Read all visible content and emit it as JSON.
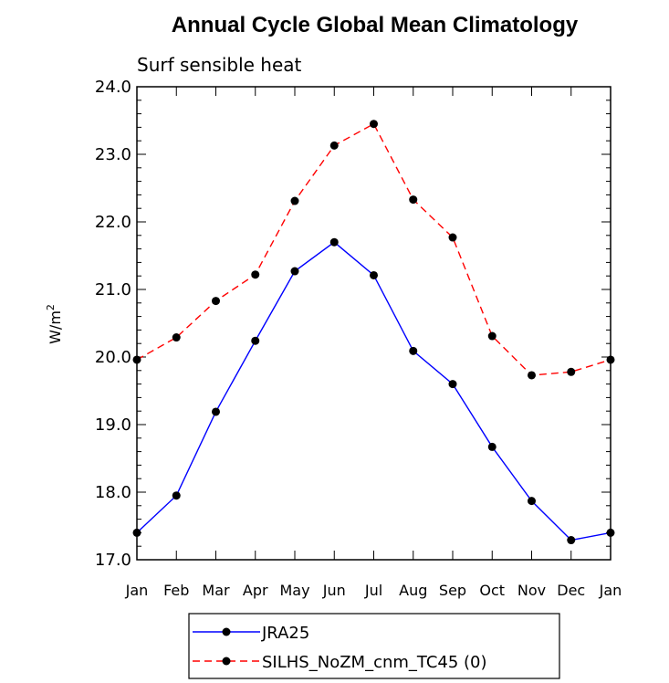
{
  "title": "Annual Cycle Global Mean Climatology",
  "chart_data": {
    "type": "line",
    "subtitle": "Surf sensible heat",
    "ylabel_base": "W/m",
    "ylabel_sup": "2",
    "categories": [
      "Jan",
      "Feb",
      "Mar",
      "Apr",
      "May",
      "Jun",
      "Jul",
      "Aug",
      "Sep",
      "Oct",
      "Nov",
      "Dec",
      "Jan"
    ],
    "ylim": [
      17.0,
      24.0
    ],
    "yticks": [
      "17.0",
      "18.0",
      "19.0",
      "20.0",
      "21.0",
      "22.0",
      "23.0",
      "24.0"
    ],
    "series": [
      {
        "name": "JRA25",
        "color": "#0000ff",
        "dash": "solid",
        "values": [
          17.4,
          17.95,
          19.19,
          20.24,
          21.27,
          21.7,
          21.21,
          20.09,
          19.6,
          18.67,
          17.87,
          17.29,
          17.4
        ]
      },
      {
        "name": "SILHS_NoZM_cnm_TC45 (0)",
        "color": "#ff0000",
        "dash": "dashed",
        "values": [
          19.96,
          20.29,
          20.83,
          21.22,
          22.31,
          23.13,
          23.45,
          22.33,
          21.77,
          20.31,
          19.73,
          19.78,
          19.96
        ]
      }
    ],
    "marker_color": "#000000"
  }
}
